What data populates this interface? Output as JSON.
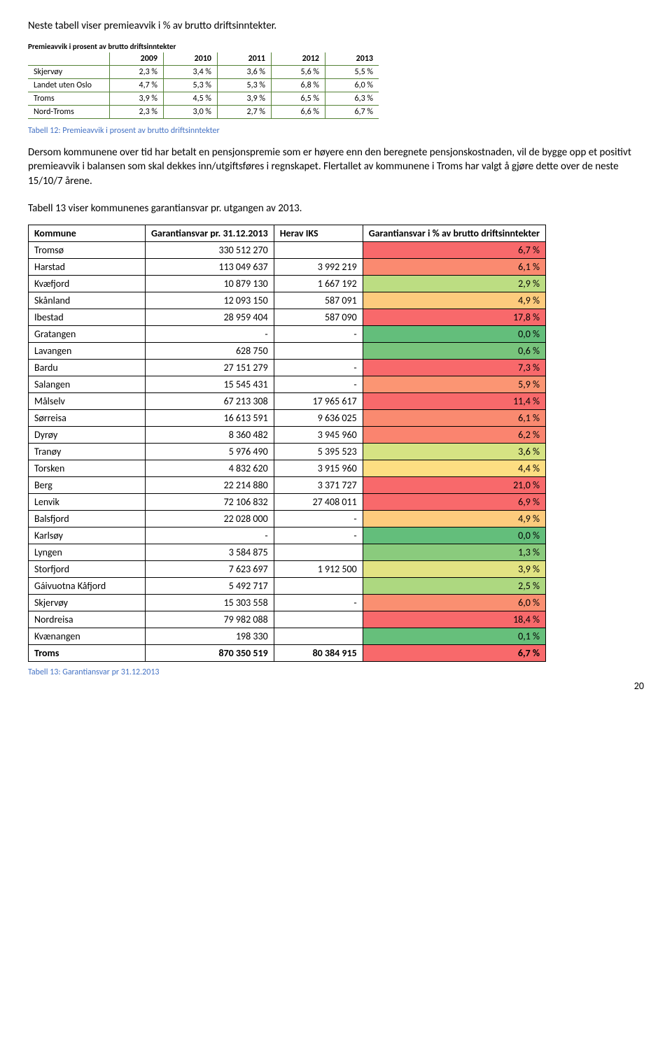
{
  "intro": "Neste tabell viser premieavvik i % av brutto driftsinntekter.",
  "table1": {
    "title": "Premieavvik i prosent av brutto driftsinntekter",
    "years": [
      "2009",
      "2010",
      "2011",
      "2012",
      "2013"
    ],
    "rows": [
      {
        "name": "Skjervøy",
        "vals": [
          "2,3 %",
          "3,4 %",
          "3,6 %",
          "5,6 %",
          "5,5 %"
        ]
      },
      {
        "name": "Landet uten Oslo",
        "vals": [
          "4,7 %",
          "5,3 %",
          "5,3 %",
          "6,8 %",
          "6,0 %"
        ]
      },
      {
        "name": "Troms",
        "vals": [
          "3,9 %",
          "4,5 %",
          "3,9 %",
          "6,5 %",
          "6,3 %"
        ]
      },
      {
        "name": "Nord-Troms",
        "vals": [
          "2,3 %",
          "3,0 %",
          "2,7 %",
          "6,6 %",
          "6,7 %"
        ]
      }
    ],
    "caption": "Tabell 12: Premieavvik i prosent av brutto driftsinntekter"
  },
  "para": "Dersom kommunene over tid har betalt en pensjonspremie som er høyere enn den beregnete pensjonskostnaden, vil de bygge opp et positivt premieavvik i balansen som skal dekkes inn/utgiftsføres i regnskapet. Flertallet av kommunene i Troms har valgt å gjøre dette over de neste 15/10/7 årene.",
  "table2intro": "Tabell 13 viser kommunenes garantiansvar pr. utgangen av 2013.",
  "table2": {
    "headers": [
      "Kommune",
      "Garantiansvar pr. 31.12.2013",
      "Herav IKS",
      "Garantiansvar i % av brutto driftsinntekter"
    ],
    "rows": [
      {
        "name": "Tromsø",
        "v1": "330 512 270",
        "v2": "",
        "pct": "6,7 %",
        "c": "#f8696b"
      },
      {
        "name": "Harstad",
        "v1": "113 049 637",
        "v2": "3 992 219",
        "pct": "6,1 %",
        "c": "#fa8a70"
      },
      {
        "name": "Kvæfjord",
        "v1": "10 879 130",
        "v2": "1 667 192",
        "pct": "2,9 %",
        "c": "#bcdd82"
      },
      {
        "name": "Skånland",
        "v1": "12 093 150",
        "v2": "587 091",
        "pct": "4,9 %",
        "c": "#fdcb7d"
      },
      {
        "name": "Ibestad",
        "v1": "28 959 404",
        "v2": "587 090",
        "pct": "17,8 %",
        "c": "#f8696b"
      },
      {
        "name": "Gratangen",
        "v1": "-",
        "v2": "-",
        "pct": "0,0 %",
        "c": "#63be7b"
      },
      {
        "name": "Lavangen",
        "v1": "628 750",
        "v2": "",
        "pct": "0,6 %",
        "c": "#78c47c"
      },
      {
        "name": "Bardu",
        "v1": "27 151 279",
        "v2": "-",
        "pct": "7,3 %",
        "c": "#f8696b"
      },
      {
        "name": "Salangen",
        "v1": "15 545 431",
        "v2": "-",
        "pct": "5,9 %",
        "c": "#fb9573"
      },
      {
        "name": "Målselv",
        "v1": "67 213 308",
        "v2": "17 965 617",
        "pct": "11,4 %",
        "c": "#f8696b"
      },
      {
        "name": "Sørreisa",
        "v1": "16 613 591",
        "v2": "9 636 025",
        "pct": "6,1 %",
        "c": "#fa8a70"
      },
      {
        "name": "Dyrøy",
        "v1": "8 360 482",
        "v2": "3 945 960",
        "pct": "6,2 %",
        "c": "#fa846f"
      },
      {
        "name": "Tranøy",
        "v1": "5 976 490",
        "v2": "5 395 523",
        "pct": "3,6 %",
        "c": "#d6e383"
      },
      {
        "name": "Torsken",
        "v1": "4 832 620",
        "v2": "3 915 960",
        "pct": "4,4 %",
        "c": "#fdde82"
      },
      {
        "name": "Berg",
        "v1": "22 214 880",
        "v2": "3 371 727",
        "pct": "21,0 %",
        "c": "#f8696b"
      },
      {
        "name": "Lenvik",
        "v1": "72 106 832",
        "v2": "27 408 011",
        "pct": "6,9 %",
        "c": "#f8696b"
      },
      {
        "name": "Balsfjord",
        "v1": "22 028 000",
        "v2": "-",
        "pct": "4,9 %",
        "c": "#fdcb7d"
      },
      {
        "name": "Karlsøy",
        "v1": "-",
        "v2": "-",
        "pct": "0,0 %",
        "c": "#63be7b"
      },
      {
        "name": "Lyngen",
        "v1": "3 584 875",
        "v2": "",
        "pct": "1,3 %",
        "c": "#8acb7d"
      },
      {
        "name": "Storfjord",
        "v1": "7 623 697",
        "v2": "1 912 500",
        "pct": "3,9 %",
        "c": "#e2e383"
      },
      {
        "name": "Gáivuotna Kåfjord",
        "v1": "5 492 717",
        "v2": "",
        "pct": "2,5 %",
        "c": "#add880"
      },
      {
        "name": "Skjervøy",
        "v1": "15 303 558",
        "v2": "-",
        "pct": "6,0 %",
        "c": "#fa8f71"
      },
      {
        "name": "Nordreisa",
        "v1": "79 982 088",
        "v2": "",
        "pct": "18,4 %",
        "c": "#f8696b"
      },
      {
        "name": "Kvænangen",
        "v1": "198 330",
        "v2": "",
        "pct": "0,1 %",
        "c": "#66bf7b"
      }
    ],
    "total": {
      "name": "Troms",
      "v1": "870 350 519",
      "v2": "80 384 915",
      "pct": "6,7 %",
      "c": "#f8696b"
    },
    "caption": "Tabell 13: Garantiansvar pr 31.12.2013"
  },
  "pagenum": "20"
}
